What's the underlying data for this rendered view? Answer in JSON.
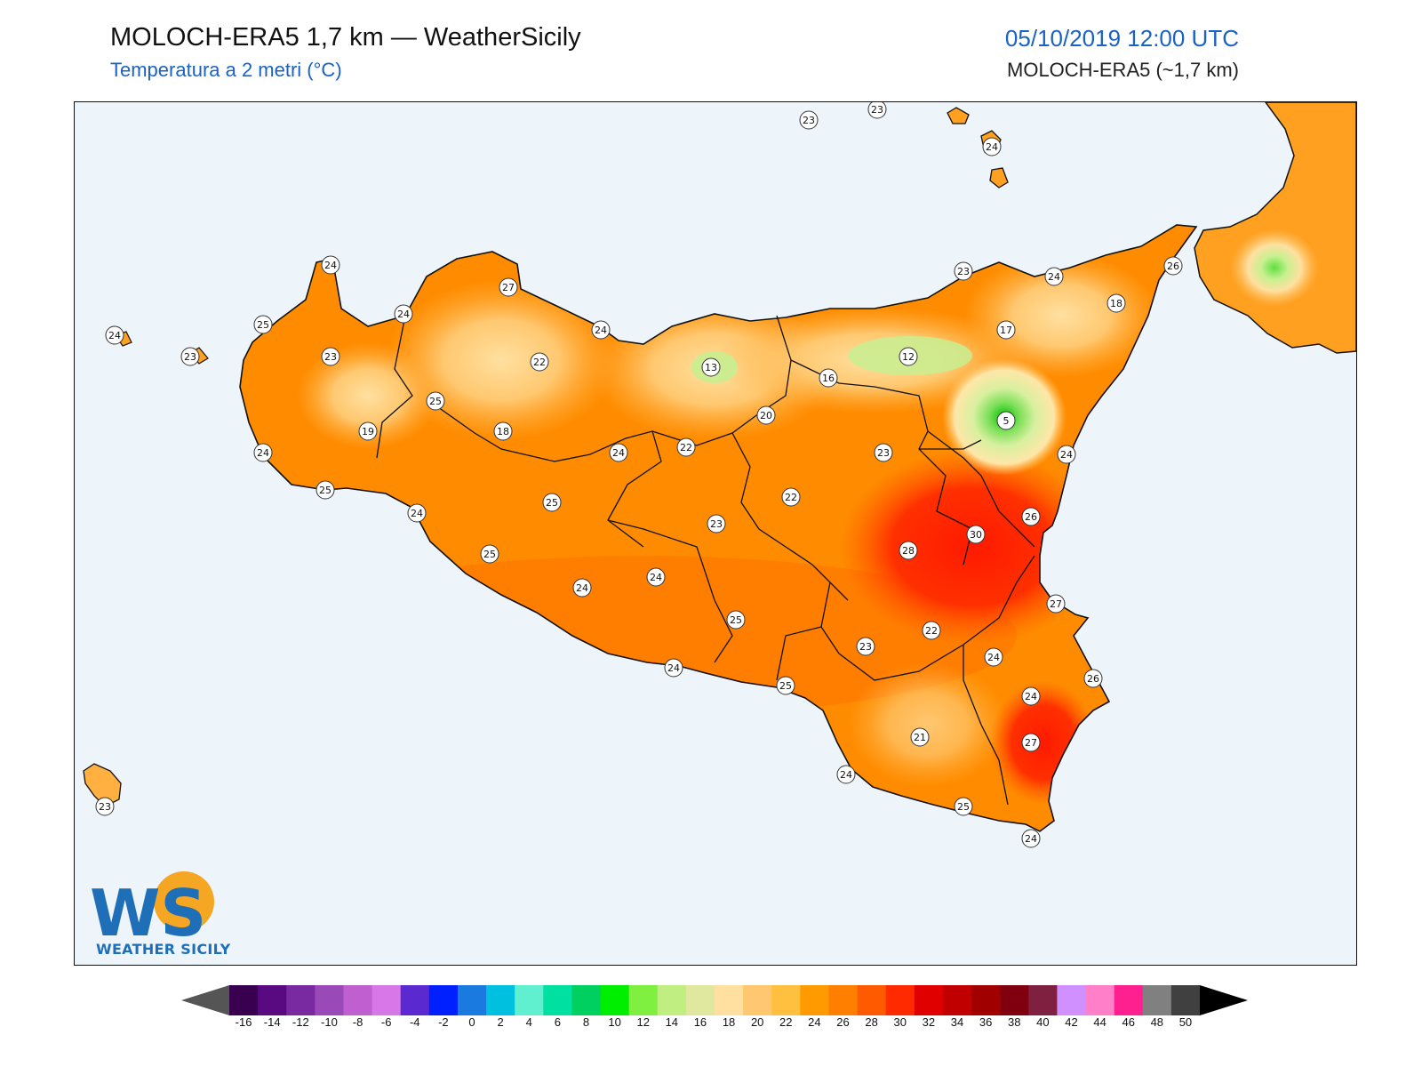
{
  "header": {
    "title": "MOLOCH-ERA5 1,7 km — WeatherSicily",
    "subtitle": "Temperatura a 2 metri (°C)",
    "datetime": "05/10/2019 12:00 UTC",
    "model": "MOLOCH-ERA5 (~1,7 km)"
  },
  "logo": {
    "text": "WEATHER SICILY",
    "initials": "WS"
  },
  "colors": {
    "sea": "#eef5fa",
    "land_base": "#ff8c00",
    "hot_core": "#ff2a00",
    "cool_inland": "#ffc060",
    "cold_peak": "#2ecc40",
    "station_fill": "#ffffff",
    "station_stroke": "#333333",
    "accent": "#1a62c4"
  },
  "stations": [
    {
      "value": "23"
    },
    {
      "value": "23"
    },
    {
      "value": "24"
    },
    {
      "value": "24"
    },
    {
      "value": "23"
    },
    {
      "value": "24"
    },
    {
      "value": "26"
    },
    {
      "value": "27"
    },
    {
      "value": "24"
    },
    {
      "value": "18"
    },
    {
      "value": "25"
    },
    {
      "value": "24"
    },
    {
      "value": "23"
    },
    {
      "value": "24"
    },
    {
      "value": "17"
    },
    {
      "value": "12"
    },
    {
      "value": "13"
    },
    {
      "value": "22"
    },
    {
      "value": "16"
    },
    {
      "value": "23"
    },
    {
      "value": "25"
    },
    {
      "value": "5"
    },
    {
      "value": "19"
    },
    {
      "value": "18"
    },
    {
      "value": "20"
    },
    {
      "value": "24"
    },
    {
      "value": "22"
    },
    {
      "value": "24"
    },
    {
      "value": "23"
    },
    {
      "value": "24"
    },
    {
      "value": "25"
    },
    {
      "value": "25"
    },
    {
      "value": "22"
    },
    {
      "value": "26"
    },
    {
      "value": "24"
    },
    {
      "value": "23"
    },
    {
      "value": "30"
    },
    {
      "value": "28"
    },
    {
      "value": "25"
    },
    {
      "value": "24"
    },
    {
      "value": "24"
    },
    {
      "value": "27"
    },
    {
      "value": "22"
    },
    {
      "value": "25"
    },
    {
      "value": "24"
    },
    {
      "value": "23"
    },
    {
      "value": "24"
    },
    {
      "value": "25"
    },
    {
      "value": "24"
    },
    {
      "value": "26"
    },
    {
      "value": "21"
    },
    {
      "value": "27"
    },
    {
      "value": "24"
    },
    {
      "value": "25"
    },
    {
      "value": "24"
    },
    {
      "value": "23"
    }
  ],
  "colorbar": {
    "ticks": [
      "-16",
      "-14",
      "-12",
      "-10",
      "-8",
      "-6",
      "-4",
      "-2",
      "0",
      "2",
      "4",
      "6",
      "8",
      "10",
      "12",
      "14",
      "16",
      "18",
      "20",
      "22",
      "24",
      "26",
      "28",
      "30",
      "32",
      "34",
      "36",
      "38",
      "40",
      "42",
      "44",
      "46",
      "48",
      "50"
    ],
    "colors": [
      "#3a0050",
      "#5a0a80",
      "#7a2aa0",
      "#9a4ab8",
      "#c060d0",
      "#d878e8",
      "#5a2ad0",
      "#0020ff",
      "#1a7ae0",
      "#00c0e0",
      "#60f0d0",
      "#00e0a0",
      "#00d060",
      "#00ee00",
      "#80f040",
      "#c0ee80",
      "#e0e8a0",
      "#ffe0a0",
      "#ffc870",
      "#ffc040",
      "#ff9a00",
      "#ff8000",
      "#ff5a00",
      "#ff2a00",
      "#e00000",
      "#c00000",
      "#a00000",
      "#800010",
      "#802040",
      "#d090ff",
      "#ff80c8",
      "#ff2090",
      "#808080",
      "#404040"
    ]
  }
}
